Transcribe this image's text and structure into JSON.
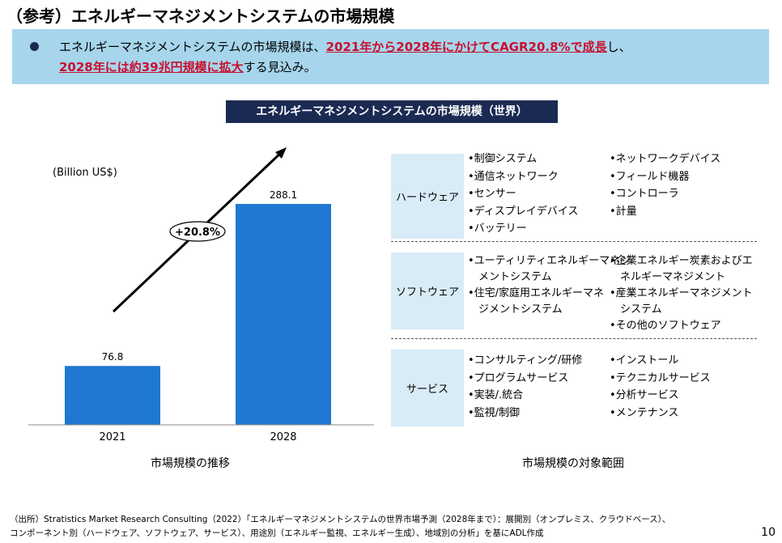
{
  "title": "（参考）エネルギーマネジメントシステムの市場規模",
  "summary": {
    "line1_pre": "エネルギーマネジメントシステムの市場規模は、",
    "line1_hl": "2021年から2028年にかけてCAGR20.8%で成長",
    "line1_post": "し、",
    "line2_hl": "2028年には約39兆円規模に拡大",
    "line2_post": "する見込み。"
  },
  "chart_title": "エネルギーマネジメントシステムの市場規模（世界）",
  "chart_data": {
    "type": "bar",
    "categories": [
      "2021",
      "2028"
    ],
    "values": [
      76.8,
      288.1
    ],
    "value_labels": [
      "76.8",
      "288.1"
    ],
    "unit_label": "(Billion US$)",
    "growth_label": "+20.8%",
    "bar_color": "#1f78d1"
  },
  "left_caption": "市場規模の推移",
  "right_caption": "市場規模の対象範囲",
  "scope": [
    {
      "category": "ハードウェア",
      "col1": [
        "•制御システム",
        "•通信ネットワーク",
        "•センサー",
        "•ディスプレイデバイス",
        "•バッテリー"
      ],
      "col2": [
        "•ネットワークデバイス",
        "•フィールド機器",
        "•コントローラ",
        "•計量"
      ]
    },
    {
      "category": "ソフトウェア",
      "col1": [
        "•ユーティリティエネルギーマネジ",
        "　メントシステム",
        "•住宅/家庭用エネルギーマネ",
        "　ジメントシステム"
      ],
      "col2": [
        "•企業エネルギー炭素およびエ",
        "　ネルギーマネジメント",
        "•産業エネルギーマネジメント",
        "　システム",
        "•その他のソフトウェア"
      ]
    },
    {
      "category": "サービス",
      "col1": [
        "•コンサルティング/研修",
        "•プログラムサービス",
        "•実装/.統合",
        "•監視/制御"
      ],
      "col2": [
        "•インストール",
        "•テクニカルサービス",
        "•分析サービス",
        "•メンテナンス"
      ]
    }
  ],
  "source": {
    "line1": "（出所）Stratistics Market Research Consulting（2022）「エネルギーマネジメントシステムの世界市場予測（2028年まで）：展開別（オンプレミス、クラウドベース）、",
    "line2": "コンポーネント別（ハードウェア、ソフトウェア、サービス）、用途別（エネルギー監視、エネルギー生成）、地域別の分析」を基にADL作成"
  },
  "page_number": "10"
}
